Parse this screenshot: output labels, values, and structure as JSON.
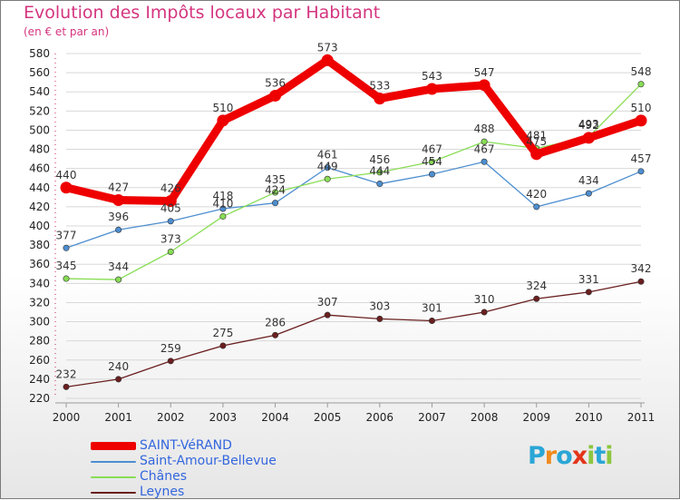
{
  "title": "Evolution des Impôts locaux par Habitant",
  "subtitle": "(en € et par an)",
  "brand": {
    "letters": [
      "P",
      "r",
      "o",
      "x",
      "i",
      "t",
      "i"
    ],
    "colors": [
      "#2aa6d6",
      "#f08a1e",
      "#2aa6d6",
      "#e2351b",
      "#8cc63f",
      "#2aa6d6",
      "#8cc63f"
    ]
  },
  "chart_data": {
    "type": "line",
    "title": "Evolution des Impôts locaux par Habitant",
    "ylabel": "(en € et par an)",
    "xlabel": "",
    "x": [
      "2000",
      "2001",
      "2002",
      "2003",
      "2004",
      "2005",
      "2006",
      "2007",
      "2008",
      "2009",
      "2010",
      "2011"
    ],
    "ylim": [
      220,
      580
    ],
    "yticks": [
      220,
      240,
      260,
      280,
      300,
      320,
      340,
      360,
      380,
      400,
      420,
      440,
      460,
      480,
      500,
      520,
      540,
      560,
      580
    ],
    "grid": "horizontal",
    "legend": "bottom-left",
    "series": [
      {
        "name": "SAINT-VéRAND",
        "color": "#ee0000",
        "values": [
          440,
          427,
          426,
          510,
          536,
          573,
          533,
          543,
          547,
          475,
          492,
          510
        ],
        "value_labels": [
          "440",
          "427",
          "426",
          "510",
          "536",
          "573",
          "533",
          "543",
          "547",
          "475",
          "492",
          "510"
        ],
        "emphasis": true
      },
      {
        "name": "Saint-Amour-Bellevue",
        "color": "#4d8ed0",
        "values": [
          377,
          396,
          405,
          418,
          424,
          461,
          444,
          454,
          467,
          420,
          434,
          457
        ],
        "value_labels": [
          "377",
          "396",
          "405",
          "418",
          "424",
          "461",
          "444",
          "454",
          "467",
          "420",
          "434",
          "457"
        ],
        "emphasis": false
      },
      {
        "name": "Chânes",
        "color": "#88dd55",
        "values": [
          345,
          344,
          373,
          410,
          435,
          449,
          456,
          467,
          488,
          481,
          493,
          548
        ],
        "value_labels": [
          "345",
          "344",
          "373",
          "410",
          "435",
          "449",
          "456",
          "467",
          "488",
          "481",
          "493",
          "548"
        ],
        "emphasis": false
      },
      {
        "name": "Leynes",
        "color": "#6a1f1f",
        "values": [
          232,
          240,
          259,
          275,
          286,
          307,
          303,
          301,
          310,
          324,
          331,
          342
        ],
        "value_labels": [
          "232",
          "240",
          "259",
          "275",
          "286",
          "307",
          "303",
          "301",
          "310",
          "324",
          "331",
          "342"
        ],
        "emphasis": false
      }
    ]
  }
}
